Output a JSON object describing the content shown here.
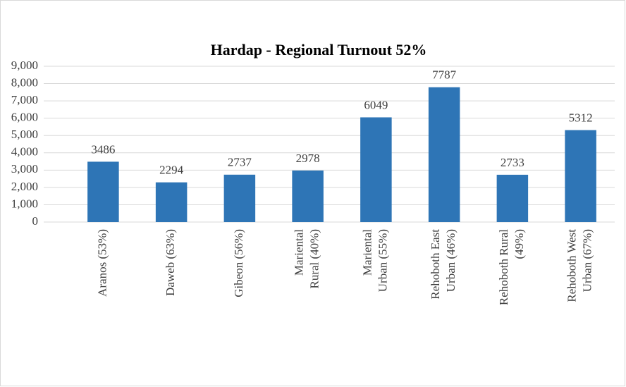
{
  "chart_data": {
    "type": "bar",
    "title": "Hardap - Regional Turnout 52%",
    "categories": [
      "Aranos (53%)",
      "Daweb (63%)",
      "Gibeon (56%)",
      "Mariental Rural (40%)",
      "Mariental Urban (55%)",
      "Rehoboth East Urban (46%)",
      "Rehoboth Rural (49%)",
      "Rehoboth West Urban (67%)"
    ],
    "values": [
      3486,
      2294,
      2737,
      2978,
      6049,
      7787,
      2733,
      5312
    ],
    "color": "#2e75b6",
    "ylim": [
      0,
      9000
    ],
    "yticks": [
      0,
      {
        "value": 1000,
        "label": "1,000"
      },
      {
        "value": 2000,
        "label": "2,000"
      },
      {
        "value": 3000,
        "label": "3,000"
      },
      {
        "value": 4000,
        "label": "4,000"
      },
      {
        "value": 5000,
        "label": "5,000"
      },
      {
        "value": 6000,
        "label": "6,000"
      },
      {
        "value": 7000,
        "label": "7,000"
      },
      {
        "value": 8000,
        "label": "8,000"
      },
      {
        "value": 9000,
        "label": "9,000"
      }
    ],
    "grid": true
  }
}
